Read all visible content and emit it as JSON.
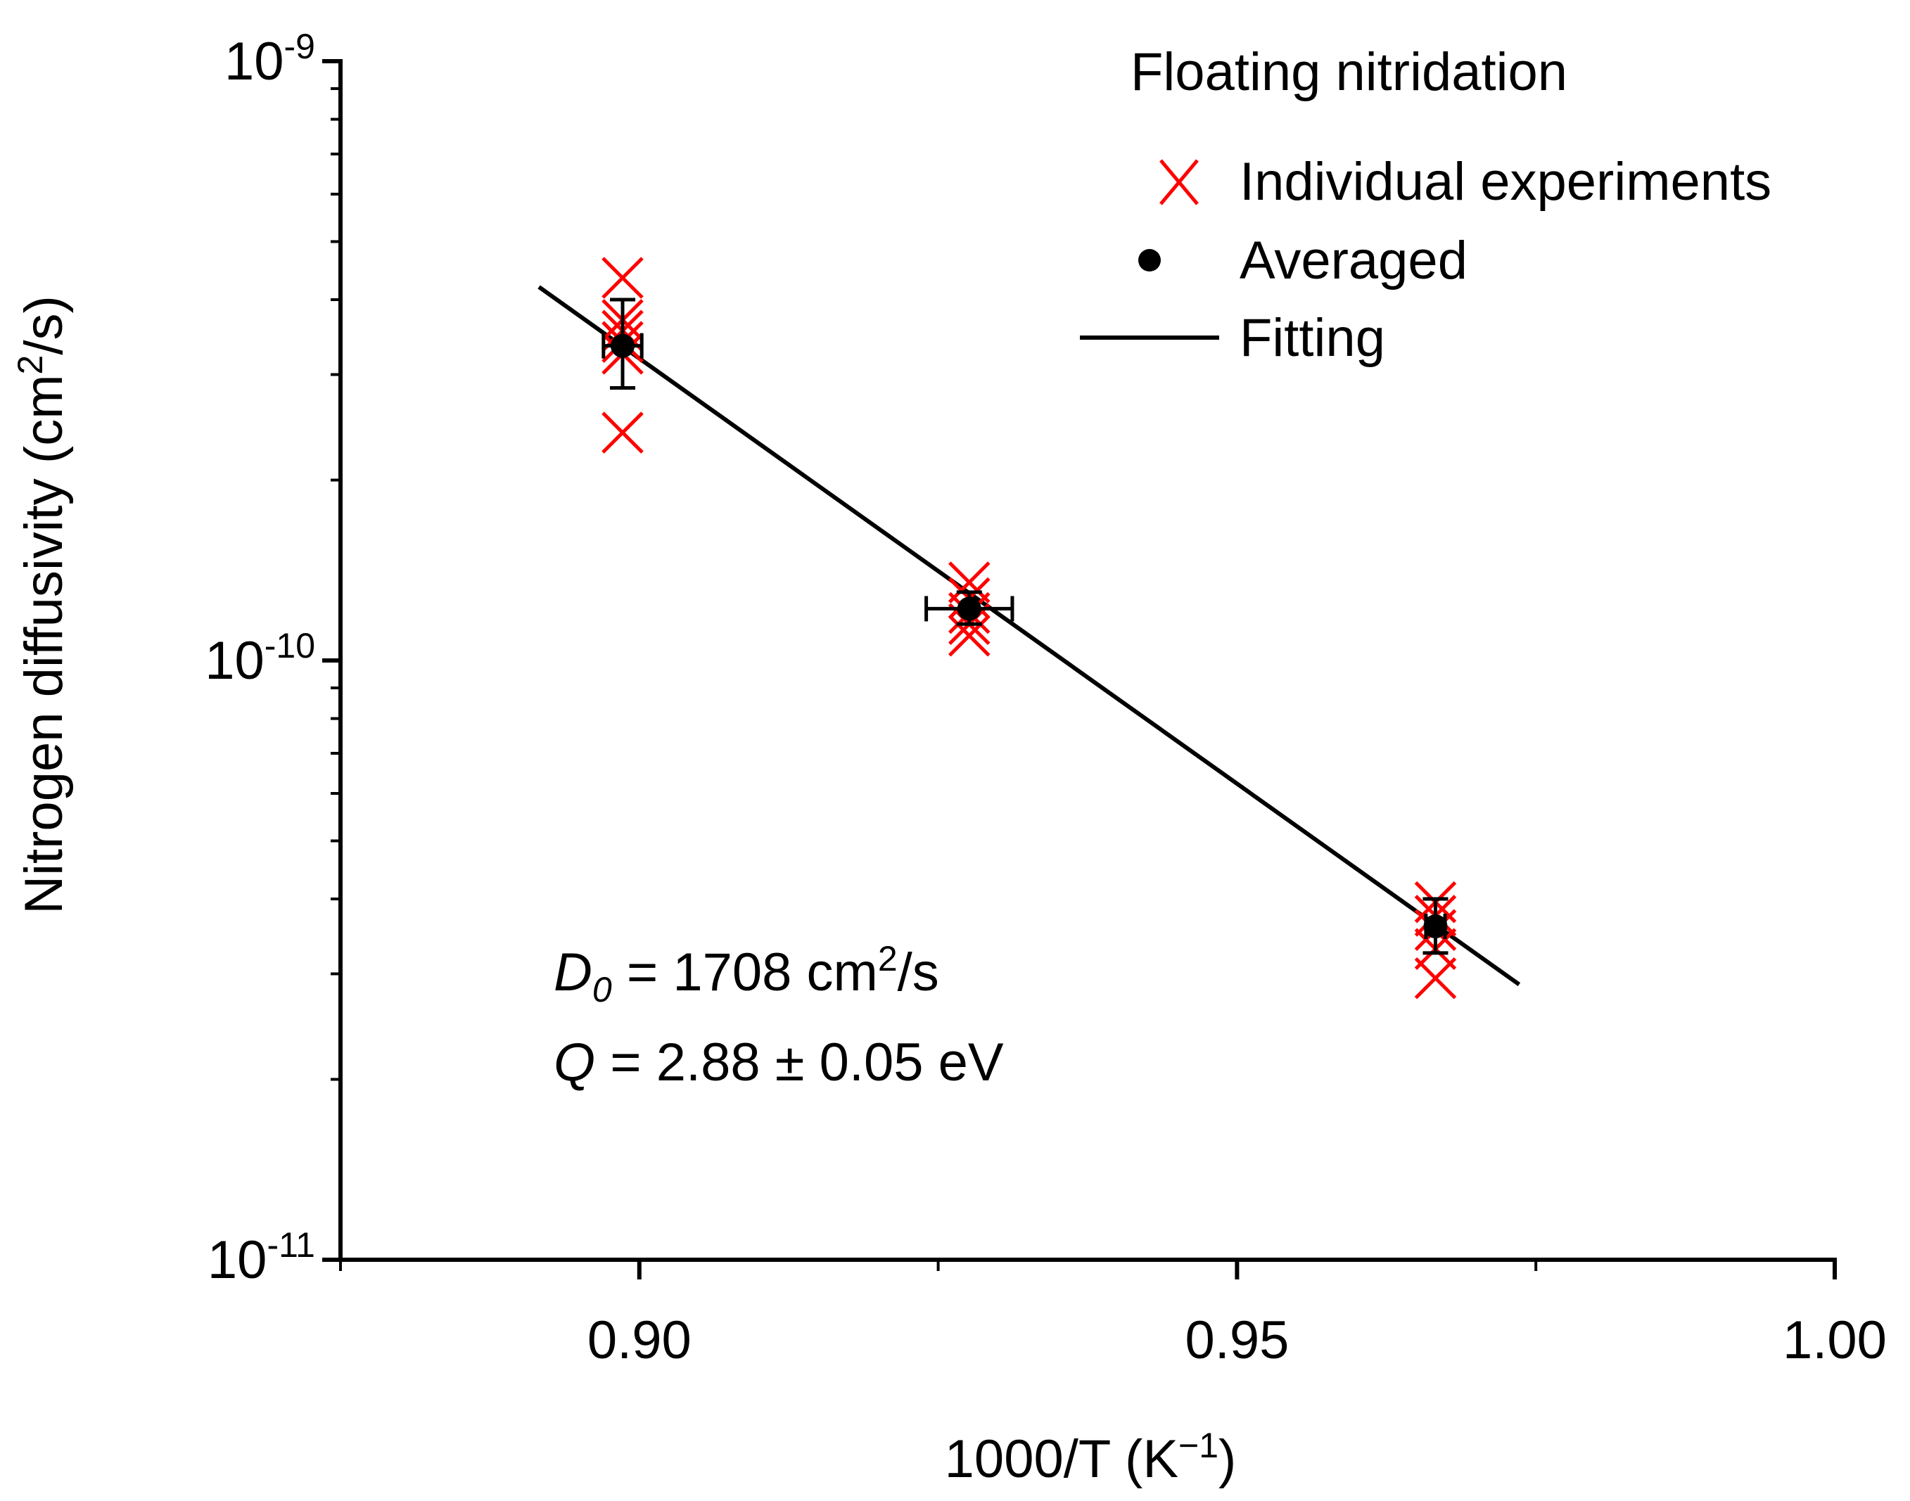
{
  "chart_data": {
    "type": "scatter",
    "title": "",
    "xlabel": {
      "main": "1000/T (K",
      "sup": "−1",
      "tail": ")"
    },
    "ylabel": {
      "main": "Nitrogen diffusivity (cm",
      "sup": "2",
      "tail": "/s)"
    },
    "xlim": [
      0.875,
      1.0
    ],
    "ylim": [
      1e-11,
      1e-09
    ],
    "yscale": "log",
    "xticks": [
      {
        "value": 0.9,
        "label": "0.90"
      },
      {
        "value": 0.95,
        "label": "0.95"
      },
      {
        "value": 1.0,
        "label": "1.00"
      }
    ],
    "xminor": [
      0.875,
      0.925,
      0.975
    ],
    "yticks": [
      {
        "value": 1e-09,
        "base": "10",
        "exp": "-9"
      },
      {
        "value": 1e-10,
        "base": "10",
        "exp": "-10"
      },
      {
        "value": 1e-11,
        "base": "10",
        "exp": "-11"
      }
    ],
    "legend": {
      "title": "Floating nitridation",
      "position": "top-right",
      "items": [
        {
          "label": "Individual experiments",
          "marker": "x",
          "color": "#ff0000"
        },
        {
          "label": "Averaged",
          "marker": "dot",
          "color": "#000000"
        },
        {
          "label": "Fitting",
          "marker": "line",
          "color": "#000000"
        }
      ]
    },
    "series": [
      {
        "name": "Individual experiments",
        "color": "#ff0000",
        "marker": "x",
        "points": [
          {
            "x": 0.8986,
            "y": 4.35e-10
          },
          {
            "x": 0.8986,
            "y": 3.7e-10
          },
          {
            "x": 0.8986,
            "y": 3.55e-10
          },
          {
            "x": 0.8986,
            "y": 3.4e-10
          },
          {
            "x": 0.8986,
            "y": 3.25e-10
          },
          {
            "x": 0.8986,
            "y": 2.4e-10
          },
          {
            "x": 0.9276,
            "y": 1.35e-10
          },
          {
            "x": 0.9276,
            "y": 1.27e-10
          },
          {
            "x": 0.9276,
            "y": 1.2e-10
          },
          {
            "x": 0.9276,
            "y": 1.15e-10
          },
          {
            "x": 0.9276,
            "y": 1.1e-10
          },
          {
            "x": 0.9666,
            "y": 3.95e-11
          },
          {
            "x": 0.9666,
            "y": 3.75e-11
          },
          {
            "x": 0.9666,
            "y": 3.55e-11
          },
          {
            "x": 0.9666,
            "y": 3.3e-11
          },
          {
            "x": 0.9666,
            "y": 2.95e-11
          }
        ]
      },
      {
        "name": "Averaged",
        "color": "#000000",
        "marker": "dot",
        "points": [
          {
            "x": 0.8986,
            "y": 3.35e-10,
            "yerr": [
              2.85e-10,
              4e-10
            ],
            "xerr": 0.0016
          },
          {
            "x": 0.9276,
            "y": 1.22e-10,
            "yerr": [
              1.15e-10,
              1.3e-10
            ],
            "xerr": 0.0036
          },
          {
            "x": 0.9666,
            "y": 3.6e-11,
            "yerr": [
              3.25e-11,
              4e-11
            ],
            "xerr": 0.0008
          }
        ]
      },
      {
        "name": "Fitting",
        "color": "#000000",
        "marker": "line",
        "points": [
          {
            "x": 0.8916,
            "y": 4.2e-10
          },
          {
            "x": 0.9736,
            "y": 2.88e-11
          }
        ]
      }
    ],
    "annotations": {
      "d0": {
        "symbol": "D",
        "sub": "0",
        "text": " = 1708 cm",
        "sup": "2",
        "tail": "/s"
      },
      "q": {
        "symbol": "Q",
        "text": " = 2.88 ± 0.05 eV"
      }
    }
  }
}
